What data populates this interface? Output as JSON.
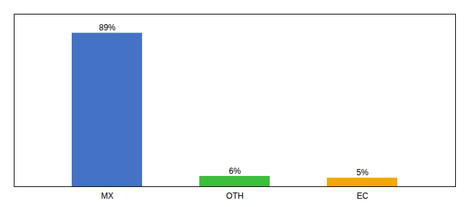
{
  "chart_data": {
    "type": "bar",
    "categories": [
      "MX",
      "OTH",
      "EC"
    ],
    "values": [
      89,
      6,
      5
    ],
    "value_labels": [
      "89%",
      "6%",
      "5%"
    ],
    "colors": [
      "#4472c4",
      "#3dbf3d",
      "#f4a700"
    ],
    "ylim": [
      0,
      100
    ],
    "data_labels": true,
    "tick_labels": "x"
  }
}
